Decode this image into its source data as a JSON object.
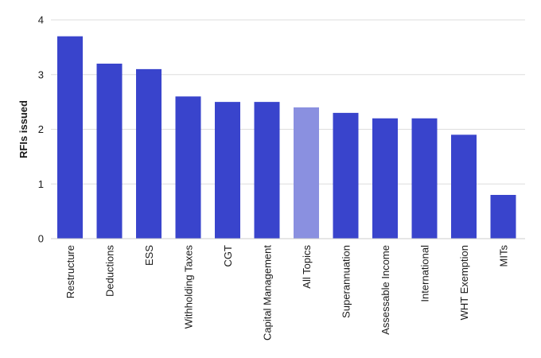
{
  "chart_data": {
    "type": "bar",
    "title": "",
    "xlabel": "",
    "ylabel": "RFIs issued",
    "ylim": [
      0,
      4
    ],
    "yticks": [
      0,
      1,
      2,
      3,
      4
    ],
    "grid": true,
    "categories": [
      "Restructure",
      "Deductions",
      "ESS",
      "Withholding Taxes",
      "CGT",
      "Capital Management",
      "All Topics",
      "Superannuation",
      "Assessable Income",
      "International",
      "WHT Exemption",
      "MITs"
    ],
    "values": [
      3.7,
      3.2,
      3.1,
      2.6,
      2.5,
      2.5,
      2.4,
      2.3,
      2.2,
      2.2,
      1.9,
      0.8
    ],
    "colors": {
      "bar": "#3944cc",
      "highlight": "#8a90e0"
    },
    "highlight_category": "All Topics"
  }
}
